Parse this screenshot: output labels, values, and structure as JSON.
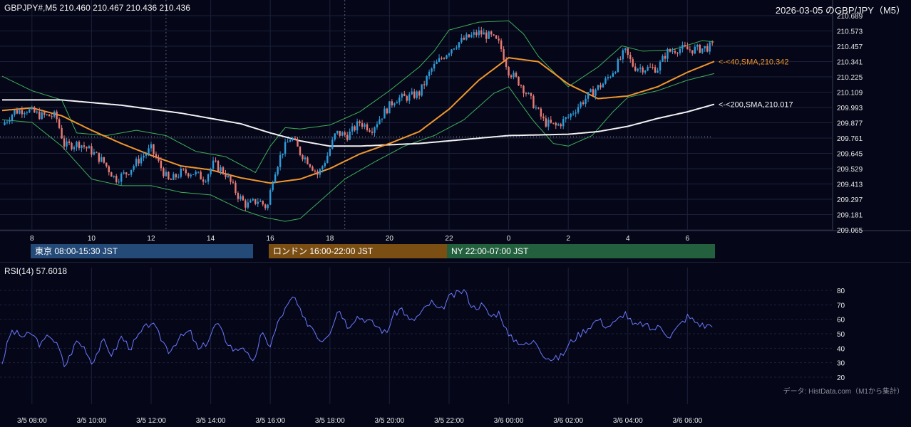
{
  "header": {
    "symbol_quote": "GBPJPY#,M5 210.460 210.467 210.436 210.436",
    "title_right": "2026-03-05 のGBP/JPY（M5）"
  },
  "sessions": [
    {
      "label": "東京 08:00-15:30 JST",
      "color": "#244a78"
    },
    {
      "label": "ロンドン 16:00-22:00 JST",
      "color": "#7b4f14"
    },
    {
      "label": "NY 22:00-07:00 JST",
      "color": "#23603d"
    }
  ],
  "rsi_panel": {
    "label": "RSI(14) 57.6018"
  },
  "credit": "データ: HistData.com（M1から集計）",
  "colors": {
    "bull": "#2f9bd8",
    "bear": "#e87b73",
    "sma40": "#f0962c",
    "sma200": "#f2f2f2",
    "band": "#3fae58",
    "rsi": "#6c78ff",
    "background": "#050719"
  },
  "chart_data": [
    {
      "type": "candlestick",
      "title": "GBPJPY#,M5",
      "y_ticks": [
        "210.689",
        "210.573",
        "210.457",
        "210.341",
        "210.225",
        "210.109",
        "209.993",
        "209.877",
        "209.761",
        "209.645",
        "209.529",
        "209.413",
        "209.297",
        "209.181",
        "209.065"
      ],
      "ylim": [
        209.065,
        210.689
      ],
      "x_ticks": [
        "8",
        "10",
        "12",
        "14",
        "16",
        "18",
        "20",
        "22",
        "0",
        "2",
        "4",
        "6"
      ],
      "x_range_hours": [
        7.0,
        6.9
      ],
      "annotations": [
        {
          "text": "<-<40,SMA,210.342",
          "value": 210.342,
          "color": "#f0962c"
        },
        {
          "text": "<-<200,SMA,210.017",
          "value": 210.017,
          "color": "#f2f2f2"
        }
      ],
      "reference_line": 209.77,
      "close_path": [
        {
          "t": 7.0,
          "v": 209.86
        },
        {
          "t": 7.4,
          "v": 209.96
        },
        {
          "t": 7.8,
          "v": 209.98
        },
        {
          "t": 8.3,
          "v": 209.93
        },
        {
          "t": 8.8,
          "v": 209.93
        },
        {
          "t": 9.1,
          "v": 209.7
        },
        {
          "t": 9.6,
          "v": 209.72
        },
        {
          "t": 10.0,
          "v": 209.66
        },
        {
          "t": 10.4,
          "v": 209.58
        },
        {
          "t": 10.8,
          "v": 209.45
        },
        {
          "t": 11.2,
          "v": 209.5
        },
        {
          "t": 11.6,
          "v": 209.6
        },
        {
          "t": 12.0,
          "v": 209.68
        },
        {
          "t": 12.3,
          "v": 209.55
        },
        {
          "t": 12.6,
          "v": 209.43
        },
        {
          "t": 13.0,
          "v": 209.5
        },
        {
          "t": 13.4,
          "v": 209.5
        },
        {
          "t": 13.8,
          "v": 209.45
        },
        {
          "t": 14.1,
          "v": 209.57
        },
        {
          "t": 14.5,
          "v": 209.49
        },
        {
          "t": 14.9,
          "v": 209.33
        },
        {
          "t": 15.2,
          "v": 209.25
        },
        {
          "t": 15.6,
          "v": 209.29
        },
        {
          "t": 15.9,
          "v": 209.23
        },
        {
          "t": 16.1,
          "v": 209.48
        },
        {
          "t": 16.4,
          "v": 209.66
        },
        {
          "t": 16.7,
          "v": 209.77
        },
        {
          "t": 17.0,
          "v": 209.65
        },
        {
          "t": 17.3,
          "v": 209.58
        },
        {
          "t": 17.6,
          "v": 209.48
        },
        {
          "t": 17.9,
          "v": 209.62
        },
        {
          "t": 18.2,
          "v": 209.8
        },
        {
          "t": 18.6,
          "v": 209.78
        },
        {
          "t": 19.0,
          "v": 209.88
        },
        {
          "t": 19.4,
          "v": 209.83
        },
        {
          "t": 19.8,
          "v": 209.95
        },
        {
          "t": 20.2,
          "v": 210.06
        },
        {
          "t": 20.6,
          "v": 210.07
        },
        {
          "t": 21.0,
          "v": 210.1
        },
        {
          "t": 21.4,
          "v": 210.28
        },
        {
          "t": 21.8,
          "v": 210.38
        },
        {
          "t": 22.2,
          "v": 210.47
        },
        {
          "t": 22.6,
          "v": 210.52
        },
        {
          "t": 23.0,
          "v": 210.56
        },
        {
          "t": 23.4,
          "v": 210.53
        },
        {
          "t": 23.7,
          "v": 210.47
        },
        {
          "t": 24.0,
          "v": 210.27
        },
        {
          "t": 24.4,
          "v": 210.17
        },
        {
          "t": 24.8,
          "v": 210.03
        },
        {
          "t": 25.2,
          "v": 209.88
        },
        {
          "t": 25.6,
          "v": 209.85
        },
        {
          "t": 26.0,
          "v": 209.92
        },
        {
          "t": 26.4,
          "v": 210.02
        },
        {
          "t": 26.8,
          "v": 210.11
        },
        {
          "t": 27.2,
          "v": 210.18
        },
        {
          "t": 27.6,
          "v": 210.3
        },
        {
          "t": 27.9,
          "v": 210.42
        },
        {
          "t": 28.2,
          "v": 210.3
        },
        {
          "t": 28.6,
          "v": 210.29
        },
        {
          "t": 29.0,
          "v": 210.29
        },
        {
          "t": 29.3,
          "v": 210.41
        },
        {
          "t": 29.7,
          "v": 210.44
        },
        {
          "t": 30.1,
          "v": 210.43
        },
        {
          "t": 30.5,
          "v": 210.44
        },
        {
          "t": 30.9,
          "v": 210.46
        }
      ],
      "sma40_path": [
        {
          "t": 7.0,
          "v": 209.97
        },
        {
          "t": 8.0,
          "v": 209.99
        },
        {
          "t": 9.0,
          "v": 209.93
        },
        {
          "t": 10.0,
          "v": 209.82
        },
        {
          "t": 11.0,
          "v": 209.72
        },
        {
          "t": 12.0,
          "v": 209.63
        },
        {
          "t": 13.0,
          "v": 209.55
        },
        {
          "t": 14.0,
          "v": 209.52
        },
        {
          "t": 15.0,
          "v": 209.46
        },
        {
          "t": 16.0,
          "v": 209.42
        },
        {
          "t": 17.0,
          "v": 209.45
        },
        {
          "t": 18.0,
          "v": 209.53
        },
        {
          "t": 19.0,
          "v": 209.64
        },
        {
          "t": 20.0,
          "v": 209.72
        },
        {
          "t": 21.0,
          "v": 209.81
        },
        {
          "t": 22.0,
          "v": 209.98
        },
        {
          "t": 23.0,
          "v": 210.2
        },
        {
          "t": 24.0,
          "v": 210.37
        },
        {
          "t": 25.0,
          "v": 210.34
        },
        {
          "t": 26.0,
          "v": 210.17
        },
        {
          "t": 27.0,
          "v": 210.06
        },
        {
          "t": 28.0,
          "v": 210.08
        },
        {
          "t": 29.0,
          "v": 210.15
        },
        {
          "t": 30.0,
          "v": 210.26
        },
        {
          "t": 30.9,
          "v": 210.342
        }
      ],
      "sma200_path": [
        {
          "t": 7.0,
          "v": 210.05
        },
        {
          "t": 9.0,
          "v": 210.05
        },
        {
          "t": 11.0,
          "v": 210.01
        },
        {
          "t": 13.0,
          "v": 209.95
        },
        {
          "t": 15.0,
          "v": 209.87
        },
        {
          "t": 16.0,
          "v": 209.8
        },
        {
          "t": 17.0,
          "v": 209.74
        },
        {
          "t": 18.0,
          "v": 209.7
        },
        {
          "t": 19.0,
          "v": 209.7
        },
        {
          "t": 21.0,
          "v": 209.72
        },
        {
          "t": 23.0,
          "v": 209.76
        },
        {
          "t": 24.0,
          "v": 209.78
        },
        {
          "t": 26.0,
          "v": 209.79
        },
        {
          "t": 27.0,
          "v": 209.81
        },
        {
          "t": 28.0,
          "v": 209.85
        },
        {
          "t": 29.0,
          "v": 209.91
        },
        {
          "t": 30.0,
          "v": 209.96
        },
        {
          "t": 30.9,
          "v": 210.017
        }
      ],
      "band_upper_path": [
        {
          "t": 7.0,
          "v": 210.23
        },
        {
          "t": 8.0,
          "v": 210.12
        },
        {
          "t": 9.0,
          "v": 210.05
        },
        {
          "t": 9.5,
          "v": 209.8
        },
        {
          "t": 10.5,
          "v": 209.78
        },
        {
          "t": 11.5,
          "v": 209.82
        },
        {
          "t": 12.5,
          "v": 209.78
        },
        {
          "t": 13.5,
          "v": 209.66
        },
        {
          "t": 14.5,
          "v": 209.62
        },
        {
          "t": 15.5,
          "v": 209.5
        },
        {
          "t": 16.0,
          "v": 209.7
        },
        {
          "t": 16.5,
          "v": 209.84
        },
        {
          "t": 17.0,
          "v": 209.83
        },
        {
          "t": 18.0,
          "v": 209.86
        },
        {
          "t": 19.0,
          "v": 209.96
        },
        {
          "t": 20.0,
          "v": 210.12
        },
        {
          "t": 21.0,
          "v": 210.3
        },
        {
          "t": 21.5,
          "v": 210.42
        },
        {
          "t": 22.0,
          "v": 210.58
        },
        {
          "t": 23.0,
          "v": 210.64
        },
        {
          "t": 24.0,
          "v": 210.65
        },
        {
          "t": 24.5,
          "v": 210.55
        },
        {
          "t": 25.0,
          "v": 210.38
        },
        {
          "t": 26.0,
          "v": 210.15
        },
        {
          "t": 27.0,
          "v": 210.3
        },
        {
          "t": 27.8,
          "v": 210.46
        },
        {
          "t": 28.5,
          "v": 210.42
        },
        {
          "t": 29.5,
          "v": 210.43
        },
        {
          "t": 30.5,
          "v": 210.5
        },
        {
          "t": 30.9,
          "v": 210.49
        }
      ],
      "band_lower_path": [
        {
          "t": 7.0,
          "v": 209.9
        },
        {
          "t": 8.0,
          "v": 209.88
        },
        {
          "t": 9.0,
          "v": 209.7
        },
        {
          "t": 10.0,
          "v": 209.45
        },
        {
          "t": 11.0,
          "v": 209.4
        },
        {
          "t": 12.0,
          "v": 209.4
        },
        {
          "t": 13.0,
          "v": 209.35
        },
        {
          "t": 14.0,
          "v": 209.33
        },
        {
          "t": 15.0,
          "v": 209.22
        },
        {
          "t": 15.8,
          "v": 209.16
        },
        {
          "t": 16.5,
          "v": 209.13
        },
        {
          "t": 17.0,
          "v": 209.15
        },
        {
          "t": 17.5,
          "v": 209.25
        },
        {
          "t": 18.5,
          "v": 209.45
        },
        {
          "t": 19.5,
          "v": 209.58
        },
        {
          "t": 20.5,
          "v": 209.7
        },
        {
          "t": 21.5,
          "v": 209.78
        },
        {
          "t": 22.5,
          "v": 209.9
        },
        {
          "t": 23.5,
          "v": 210.1
        },
        {
          "t": 24.0,
          "v": 210.15
        },
        {
          "t": 24.8,
          "v": 209.9
        },
        {
          "t": 25.5,
          "v": 209.72
        },
        {
          "t": 26.0,
          "v": 209.7
        },
        {
          "t": 26.8,
          "v": 209.78
        },
        {
          "t": 27.5,
          "v": 209.96
        },
        {
          "t": 28.0,
          "v": 210.07
        },
        {
          "t": 29.0,
          "v": 210.12
        },
        {
          "t": 30.0,
          "v": 210.2
        },
        {
          "t": 30.9,
          "v": 210.25
        }
      ]
    },
    {
      "type": "line",
      "title": "RSI(14) 57.6018",
      "y_ticks": [
        "80",
        "70",
        "60",
        "50",
        "40",
        "30",
        "20"
      ],
      "ylim": [
        20,
        80
      ],
      "x_ticks": [
        "3/5 08:00",
        "3/5 10:00",
        "3/5 12:00",
        "3/5 14:00",
        "3/5 16:00",
        "3/5 18:00",
        "3/5 20:00",
        "3/5 22:00",
        "3/6 00:00",
        "3/6 02:00",
        "3/6 04:00",
        "3/6 06:00"
      ],
      "rsi_path": [
        {
          "t": 7.0,
          "v": 30
        },
        {
          "t": 7.3,
          "v": 52
        },
        {
          "t": 7.7,
          "v": 48
        },
        {
          "t": 8.0,
          "v": 50
        },
        {
          "t": 8.3,
          "v": 42
        },
        {
          "t": 8.6,
          "v": 50
        },
        {
          "t": 8.9,
          "v": 40
        },
        {
          "t": 9.1,
          "v": 27
        },
        {
          "t": 9.5,
          "v": 45
        },
        {
          "t": 9.8,
          "v": 40
        },
        {
          "t": 10.0,
          "v": 30
        },
        {
          "t": 10.4,
          "v": 45
        },
        {
          "t": 10.7,
          "v": 35
        },
        {
          "t": 11.0,
          "v": 48
        },
        {
          "t": 11.3,
          "v": 40
        },
        {
          "t": 11.7,
          "v": 52
        },
        {
          "t": 12.0,
          "v": 58
        },
        {
          "t": 12.3,
          "v": 48
        },
        {
          "t": 12.6,
          "v": 38
        },
        {
          "t": 12.9,
          "v": 46
        },
        {
          "t": 13.3,
          "v": 52
        },
        {
          "t": 13.6,
          "v": 38
        },
        {
          "t": 13.9,
          "v": 45
        },
        {
          "t": 14.2,
          "v": 58
        },
        {
          "t": 14.5,
          "v": 46
        },
        {
          "t": 14.8,
          "v": 38
        },
        {
          "t": 15.1,
          "v": 42
        },
        {
          "t": 15.4,
          "v": 28
        },
        {
          "t": 15.7,
          "v": 50
        },
        {
          "t": 16.0,
          "v": 42
        },
        {
          "t": 16.3,
          "v": 60
        },
        {
          "t": 16.6,
          "v": 70
        },
        {
          "t": 16.8,
          "v": 76
        },
        {
          "t": 17.1,
          "v": 60
        },
        {
          "t": 17.4,
          "v": 55
        },
        {
          "t": 17.7,
          "v": 45
        },
        {
          "t": 18.0,
          "v": 52
        },
        {
          "t": 18.3,
          "v": 68
        },
        {
          "t": 18.6,
          "v": 55
        },
        {
          "t": 18.9,
          "v": 62
        },
        {
          "t": 19.2,
          "v": 60
        },
        {
          "t": 19.6,
          "v": 55
        },
        {
          "t": 19.9,
          "v": 50
        },
        {
          "t": 20.1,
          "v": 62
        },
        {
          "t": 20.4,
          "v": 68
        },
        {
          "t": 20.7,
          "v": 58
        },
        {
          "t": 21.0,
          "v": 63
        },
        {
          "t": 21.4,
          "v": 72
        },
        {
          "t": 21.7,
          "v": 65
        },
        {
          "t": 22.0,
          "v": 75
        },
        {
          "t": 22.3,
          "v": 78
        },
        {
          "t": 22.5,
          "v": 80
        },
        {
          "t": 22.8,
          "v": 68
        },
        {
          "t": 23.1,
          "v": 70
        },
        {
          "t": 23.4,
          "v": 62
        },
        {
          "t": 23.7,
          "v": 65
        },
        {
          "t": 24.0,
          "v": 48
        },
        {
          "t": 24.3,
          "v": 45
        },
        {
          "t": 24.6,
          "v": 42
        },
        {
          "t": 24.9,
          "v": 45
        },
        {
          "t": 25.2,
          "v": 35
        },
        {
          "t": 25.5,
          "v": 32
        },
        {
          "t": 25.8,
          "v": 35
        },
        {
          "t": 26.1,
          "v": 45
        },
        {
          "t": 26.4,
          "v": 50
        },
        {
          "t": 26.7,
          "v": 55
        },
        {
          "t": 27.0,
          "v": 60
        },
        {
          "t": 27.3,
          "v": 55
        },
        {
          "t": 27.6,
          "v": 58
        },
        {
          "t": 27.9,
          "v": 65
        },
        {
          "t": 28.2,
          "v": 55
        },
        {
          "t": 28.5,
          "v": 57
        },
        {
          "t": 28.8,
          "v": 53
        },
        {
          "t": 29.1,
          "v": 55
        },
        {
          "t": 29.4,
          "v": 48
        },
        {
          "t": 29.7,
          "v": 55
        },
        {
          "t": 30.0,
          "v": 62
        },
        {
          "t": 30.3,
          "v": 58
        },
        {
          "t": 30.6,
          "v": 55
        },
        {
          "t": 30.9,
          "v": 57.6
        }
      ]
    }
  ]
}
